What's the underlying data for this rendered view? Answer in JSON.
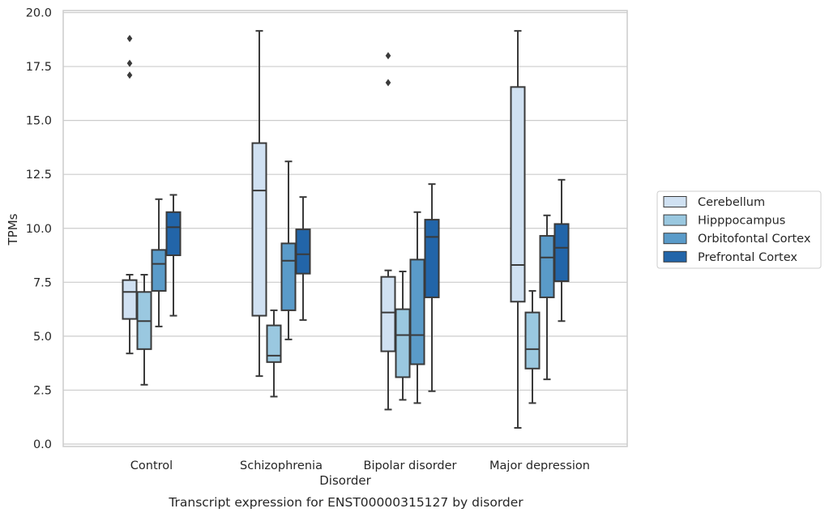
{
  "chart_data": {
    "type": "box",
    "caption": "Transcript expression for ENST00000315127 by disorder",
    "xlabel": "Disorder",
    "ylabel": "TPMs",
    "ylim": [
      0,
      20
    ],
    "yticks": [
      0.0,
      2.5,
      5.0,
      7.5,
      10.0,
      12.5,
      15.0,
      17.5,
      20.0
    ],
    "ytick_labels": [
      "0.0",
      "2.5",
      "5.0",
      "7.5",
      "10.0",
      "12.5",
      "15.0",
      "17.5",
      "20.0"
    ],
    "grid": true,
    "legend_position": "right",
    "categories": [
      "Control",
      "Schizophrenia",
      "Bipolar disorder",
      "Major depression"
    ],
    "series": [
      {
        "name": "Cerebellum",
        "color": "#d0e1f2",
        "boxes": [
          {
            "whisker_low": 4.2,
            "q1": 5.8,
            "median": 7.05,
            "q3": 7.6,
            "whisker_high": 7.85,
            "outliers": [
              17.1,
              17.65,
              18.8
            ]
          },
          {
            "whisker_low": 3.15,
            "q1": 5.95,
            "median": 11.75,
            "q3": 13.95,
            "whisker_high": 19.15,
            "outliers": []
          },
          {
            "whisker_low": 1.6,
            "q1": 4.3,
            "median": 6.1,
            "q3": 7.75,
            "whisker_high": 8.05,
            "outliers": [
              16.75,
              18.0
            ]
          },
          {
            "whisker_low": 0.75,
            "q1": 6.6,
            "median": 8.3,
            "q3": 16.55,
            "whisker_high": 19.15,
            "outliers": []
          }
        ]
      },
      {
        "name": "Hipppocampus",
        "color": "#9ac8e0",
        "boxes": [
          {
            "whisker_low": 2.75,
            "q1": 4.4,
            "median": 5.7,
            "q3": 7.05,
            "whisker_high": 7.85,
            "outliers": []
          },
          {
            "whisker_low": 2.2,
            "q1": 3.8,
            "median": 4.1,
            "q3": 5.5,
            "whisker_high": 6.2,
            "outliers": []
          },
          {
            "whisker_low": 2.05,
            "q1": 3.1,
            "median": 5.05,
            "q3": 6.25,
            "whisker_high": 8.0,
            "outliers": []
          },
          {
            "whisker_low": 1.9,
            "q1": 3.5,
            "median": 4.4,
            "q3": 6.1,
            "whisker_high": 7.1,
            "outliers": []
          }
        ]
      },
      {
        "name": "Orbitofontal Cortex",
        "color": "#5a9bc9",
        "boxes": [
          {
            "whisker_low": 5.45,
            "q1": 7.1,
            "median": 8.35,
            "q3": 9.0,
            "whisker_high": 11.35,
            "outliers": []
          },
          {
            "whisker_low": 4.85,
            "q1": 6.2,
            "median": 8.5,
            "q3": 9.3,
            "whisker_high": 13.1,
            "outliers": []
          },
          {
            "whisker_low": 1.9,
            "q1": 3.7,
            "median": 5.05,
            "q3": 8.55,
            "whisker_high": 10.75,
            "outliers": []
          },
          {
            "whisker_low": 3.0,
            "q1": 6.8,
            "median": 8.65,
            "q3": 9.65,
            "whisker_high": 10.6,
            "outliers": []
          }
        ]
      },
      {
        "name": "Prefrontal Cortex",
        "color": "#2265a9",
        "boxes": [
          {
            "whisker_low": 5.95,
            "q1": 8.75,
            "median": 10.05,
            "q3": 10.75,
            "whisker_high": 11.55,
            "outliers": []
          },
          {
            "whisker_low": 5.75,
            "q1": 7.9,
            "median": 8.8,
            "q3": 9.95,
            "whisker_high": 11.45,
            "outliers": []
          },
          {
            "whisker_low": 2.45,
            "q1": 6.8,
            "median": 9.6,
            "q3": 10.4,
            "whisker_high": 12.05,
            "outliers": []
          },
          {
            "whisker_low": 5.7,
            "q1": 7.55,
            "median": 9.1,
            "q3": 10.2,
            "whisker_high": 12.25,
            "outliers": []
          }
        ]
      }
    ]
  }
}
